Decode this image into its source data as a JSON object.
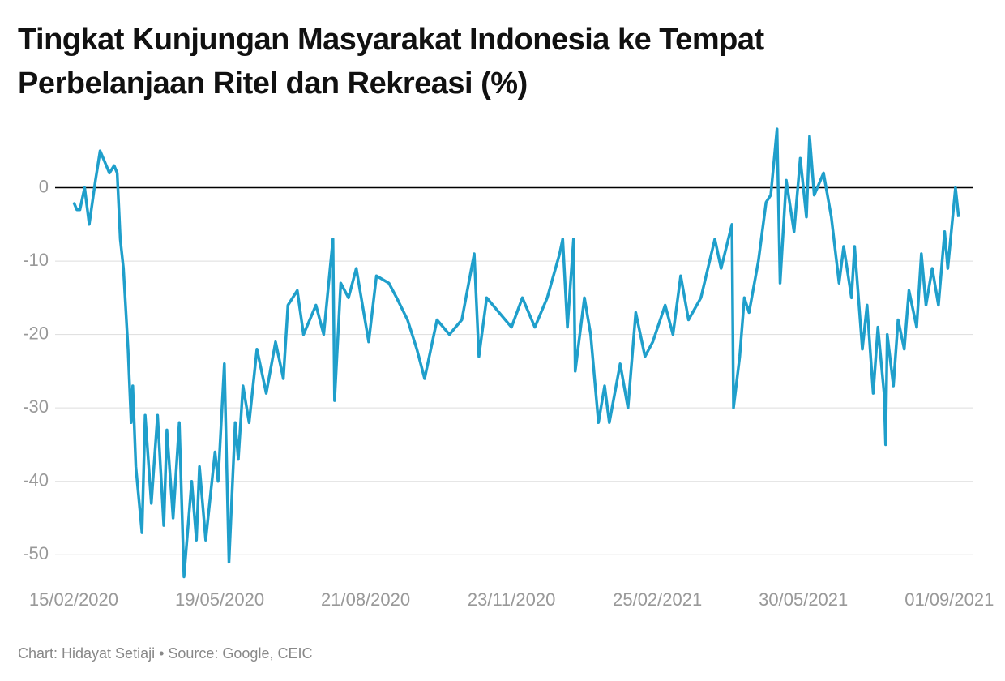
{
  "chart_data": {
    "type": "line",
    "title": "Tingkat Kunjungan Masyarakat Indonesia ke Tempat Perbelanjaan Ritel dan Rekreasi (%)",
    "caption": "Chart: Hidayat Setiaji • Source: Google, CEIC",
    "color": "#1f9fcb",
    "x": [
      "15/02/2020",
      "17/02/2020",
      "19/02/2020",
      "22/02/2020",
      "25/02/2020",
      "29/02/2020",
      "03/03/2020",
      "05/03/2020",
      "09/03/2020",
      "12/03/2020",
      "14/03/2020",
      "16/03/2020",
      "18/03/2020",
      "21/03/2020",
      "23/03/2020",
      "24/03/2020",
      "26/03/2020",
      "30/03/2020",
      "01/04/2020",
      "05/04/2020",
      "09/04/2020",
      "13/04/2020",
      "15/04/2020",
      "19/04/2020",
      "23/04/2020",
      "26/04/2020",
      "01/05/2020",
      "04/05/2020",
      "06/05/2020",
      "10/05/2020",
      "16/05/2020",
      "18/05/2020",
      "22/05/2020",
      "25/05/2020",
      "29/05/2020",
      "31/05/2020",
      "03/06/2020",
      "07/06/2020",
      "12/06/2020",
      "18/06/2020",
      "24/06/2020",
      "29/06/2020",
      "02/07/2020",
      "08/07/2020",
      "12/07/2020",
      "20/07/2020",
      "25/07/2020",
      "31/07/2020",
      "01/08/2020",
      "05/08/2020",
      "10/08/2020",
      "15/08/2020",
      "23/08/2020",
      "28/08/2020",
      "05/09/2020",
      "10/09/2020",
      "17/09/2020",
      "23/09/2020",
      "28/09/2020",
      "06/10/2020",
      "14/10/2020",
      "22/10/2020",
      "30/10/2020",
      "02/11/2020",
      "07/11/2020",
      "15/11/2020",
      "23/11/2020",
      "30/11/2020",
      "08/12/2020",
      "16/12/2020",
      "24/12/2020",
      "26/12/2020",
      "29/12/2020",
      "02/01/2021",
      "03/01/2021",
      "09/01/2021",
      "13/01/2021",
      "18/01/2021",
      "22/01/2021",
      "25/01/2021",
      "01/02/2021",
      "06/02/2021",
      "11/02/2021",
      "17/02/2021",
      "22/02/2021",
      "02/03/2021",
      "07/03/2021",
      "12/03/2021",
      "17/03/2021",
      "25/03/2021",
      "03/04/2021",
      "07/04/2021",
      "14/04/2021",
      "15/04/2021",
      "19/04/2021",
      "22/04/2021",
      "25/04/2021",
      "01/05/2021",
      "06/05/2021",
      "09/05/2021",
      "13/05/2021",
      "15/05/2021",
      "19/05/2021",
      "24/05/2021",
      "28/05/2021",
      "01/06/2021",
      "03/06/2021",
      "06/06/2021",
      "12/06/2021",
      "17/06/2021",
      "22/06/2021",
      "25/06/2021",
      "30/06/2021",
      "02/07/2021",
      "07/07/2021",
      "10/07/2021",
      "14/07/2021",
      "17/07/2021",
      "21/07/2021",
      "22/07/2021",
      "23/07/2021",
      "27/07/2021",
      "30/07/2021",
      "03/08/2021",
      "06/08/2021",
      "11/08/2021",
      "14/08/2021",
      "17/08/2021",
      "21/08/2021",
      "25/08/2021",
      "29/08/2021",
      "31/08/2021",
      "05/09/2021",
      "07/09/2021"
    ],
    "values": [
      -2,
      -3,
      -3,
      0,
      -5,
      1,
      5,
      4,
      2,
      3,
      2,
      -7,
      -11,
      -22,
      -32,
      -27,
      -38,
      -47,
      -31,
      -43,
      -31,
      -46,
      -33,
      -45,
      -32,
      -53,
      -40,
      -48,
      -38,
      -48,
      -36,
      -40,
      -24,
      -51,
      -32,
      -37,
      -27,
      -32,
      -22,
      -28,
      -21,
      -26,
      -16,
      -14,
      -20,
      -16,
      -20,
      -7,
      -29,
      -13,
      -15,
      -11,
      -21,
      -12,
      -13,
      -15,
      -18,
      -22,
      -26,
      -18,
      -20,
      -18,
      -9,
      -23,
      -15,
      -17,
      -19,
      -15,
      -19,
      -15,
      -9,
      -7,
      -19,
      -7,
      -25,
      -15,
      -20,
      -32,
      -27,
      -32,
      -24,
      -30,
      -17,
      -23,
      -21,
      -16,
      -20,
      -12,
      -18,
      -15,
      -7,
      -11,
      -5,
      -30,
      -23,
      -15,
      -17,
      -10,
      -2,
      -1,
      8,
      -13,
      1,
      -6,
      4,
      -4,
      7,
      -1,
      2,
      -4,
      -13,
      -8,
      -15,
      -8,
      -22,
      -16,
      -28,
      -19,
      -28,
      -35,
      -20,
      -27,
      -18,
      -22,
      -14,
      -19,
      -9,
      -16,
      -11,
      -16,
      -6,
      -11,
      0,
      -4
    ],
    "xlim": [
      "22/01/2020",
      "16/09/2021"
    ],
    "xticks": [
      "15/02/2020",
      "19/05/2020",
      "21/08/2020",
      "23/11/2020",
      "25/02/2021",
      "30/05/2021",
      "01/09/2021"
    ],
    "ylim": [
      -53.5,
      9
    ],
    "yticks": [
      0,
      -10,
      -20,
      -30,
      -40,
      -50
    ],
    "grid": true
  }
}
